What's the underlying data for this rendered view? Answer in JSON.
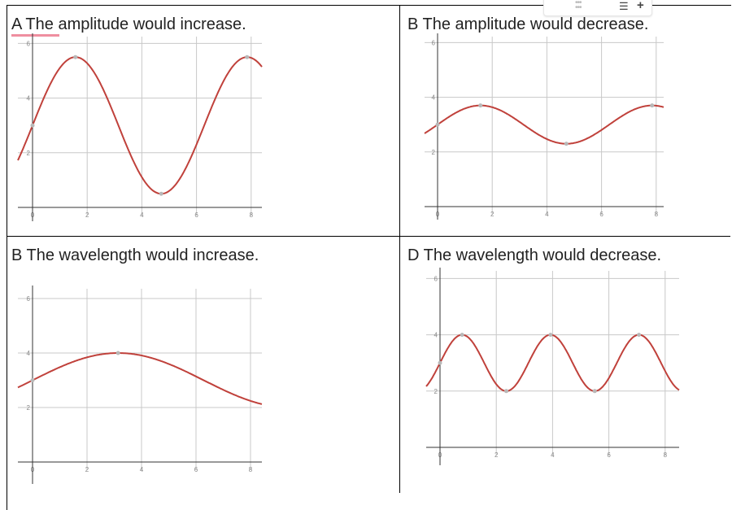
{
  "options": [
    {
      "label": "A The amplitude would increase."
    },
    {
      "label": "B The amplitude would decrease."
    },
    {
      "label": "B The wavelength would increase."
    },
    {
      "label": "D The wavelength would decrease."
    }
  ],
  "toolbar": {
    "drag_icon": "drag-handle-icon",
    "list_icon": "list-icon",
    "add_icon": "plus-icon"
  },
  "colors": {
    "curve": "#c0413b",
    "point": "#b8b8b8",
    "grid": "#c8c8c8",
    "axis": "#333333"
  },
  "chart_data": [
    {
      "type": "line",
      "function": "y = 3 + 2.5*sin(x)",
      "offset": 3,
      "amplitude": 2.5,
      "frequency": 1,
      "xlim": [
        -0.5,
        8.4
      ],
      "ylim": [
        0,
        6.3
      ],
      "xticks": [
        0,
        2,
        4,
        6,
        8
      ],
      "yticks": [
        2,
        4,
        6
      ],
      "points": [
        [
          0,
          3
        ],
        [
          1.57,
          5.5
        ],
        [
          4.71,
          0.5
        ],
        [
          7.85,
          5.5
        ]
      ],
      "grid": true
    },
    {
      "type": "line",
      "function": "y = 3 + 0.7*sin(x)",
      "offset": 3,
      "amplitude": 0.7,
      "frequency": 1,
      "xlim": [
        -0.5,
        8.4
      ],
      "ylim": [
        0,
        6.3
      ],
      "xticks": [
        0,
        2,
        4,
        6,
        8
      ],
      "yticks": [
        2,
        4,
        6
      ],
      "points": [
        [
          0,
          3
        ],
        [
          1.57,
          3.7
        ],
        [
          4.71,
          2.3
        ],
        [
          7.85,
          3.7
        ]
      ],
      "grid": true
    },
    {
      "type": "line",
      "function": "y = 3 + sin(x/2)",
      "offset": 3,
      "amplitude": 1,
      "frequency": 0.5,
      "xlim": [
        -0.5,
        8.4
      ],
      "ylim": [
        0,
        6.3
      ],
      "xticks": [
        0,
        2,
        4,
        6,
        8
      ],
      "yticks": [
        2,
        4,
        6
      ],
      "points": [
        [
          0,
          3
        ],
        [
          3.14,
          4
        ]
      ],
      "grid": true
    },
    {
      "type": "line",
      "function": "y = 3 + sin(2x)",
      "offset": 3,
      "amplitude": 1,
      "frequency": 2,
      "xlim": [
        -0.5,
        8.4
      ],
      "ylim": [
        0,
        6.3
      ],
      "xticks": [
        0,
        2,
        4,
        6,
        8
      ],
      "yticks": [
        2,
        4,
        6
      ],
      "points": [
        [
          0,
          3
        ],
        [
          0.785,
          4
        ],
        [
          2.356,
          2
        ],
        [
          3.927,
          4
        ],
        [
          5.498,
          2
        ],
        [
          7.069,
          4
        ]
      ],
      "grid": true
    }
  ]
}
